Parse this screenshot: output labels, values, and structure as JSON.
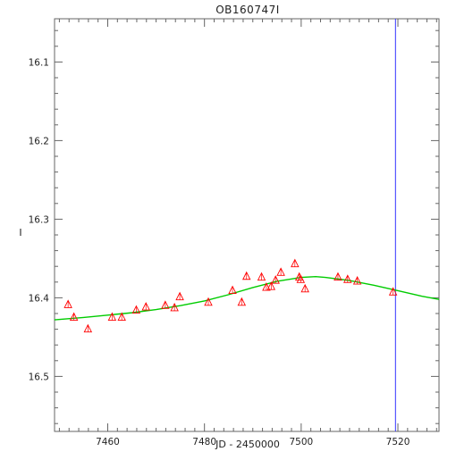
{
  "chart_data": {
    "type": "scatter",
    "title": "OB160747I",
    "xlabel": "JD - 2450000",
    "ylabel": "I",
    "xlim": [
      7449.0,
      7528.5
    ],
    "ylim": [
      16.57,
      16.045
    ],
    "y_inverted": true,
    "grid": false,
    "x_ticks": [
      7460,
      7480,
      7500,
      7520
    ],
    "y_ticks": [
      16.1,
      16.2,
      16.3,
      16.4,
      16.5
    ],
    "x_tick_labels": [
      "7460",
      "7480",
      "7500",
      "7520"
    ],
    "y_tick_labels": [
      "16.1",
      "16.2",
      "16.3",
      "16.4",
      "16.5"
    ],
    "vertical_marker_x": 7519.5,
    "series": [
      {
        "kind": "points",
        "marker": "triangle",
        "x": [
          7451.8,
          7453.0,
          7455.9,
          7460.9,
          7462.9,
          7465.9,
          7467.9,
          7471.9,
          7473.8,
          7474.9,
          7480.8,
          7485.8,
          7487.7,
          7488.7,
          7491.8,
          7492.8,
          7493.8,
          7494.7,
          7495.8,
          7498.7,
          7499.6,
          7499.9,
          7500.8,
          7507.6,
          7509.6,
          7511.6,
          7519.0
        ],
        "y": [
          16.408,
          16.424,
          16.439,
          16.424,
          16.424,
          16.415,
          16.411,
          16.409,
          16.412,
          16.398,
          16.405,
          16.39,
          16.405,
          16.372,
          16.373,
          16.386,
          16.385,
          16.377,
          16.367,
          16.356,
          16.373,
          16.376,
          16.388,
          16.373,
          16.376,
          16.378,
          16.392
        ]
      },
      {
        "kind": "model",
        "x": [
          7449,
          7455,
          7460,
          7465,
          7470,
          7475,
          7480,
          7485,
          7490,
          7495,
          7500,
          7503,
          7505,
          7510,
          7515,
          7520,
          7525,
          7528.5
        ],
        "y": [
          16.428,
          16.425,
          16.422,
          16.419,
          16.415,
          16.41,
          16.404,
          16.396,
          16.387,
          16.379,
          16.374,
          16.373,
          16.374,
          16.378,
          16.384,
          16.391,
          16.398,
          16.402
        ]
      }
    ],
    "colors": {
      "points": "#ff0000",
      "model": "#00cc00",
      "marker_line": "#3333ff",
      "axes": "#666666"
    }
  }
}
